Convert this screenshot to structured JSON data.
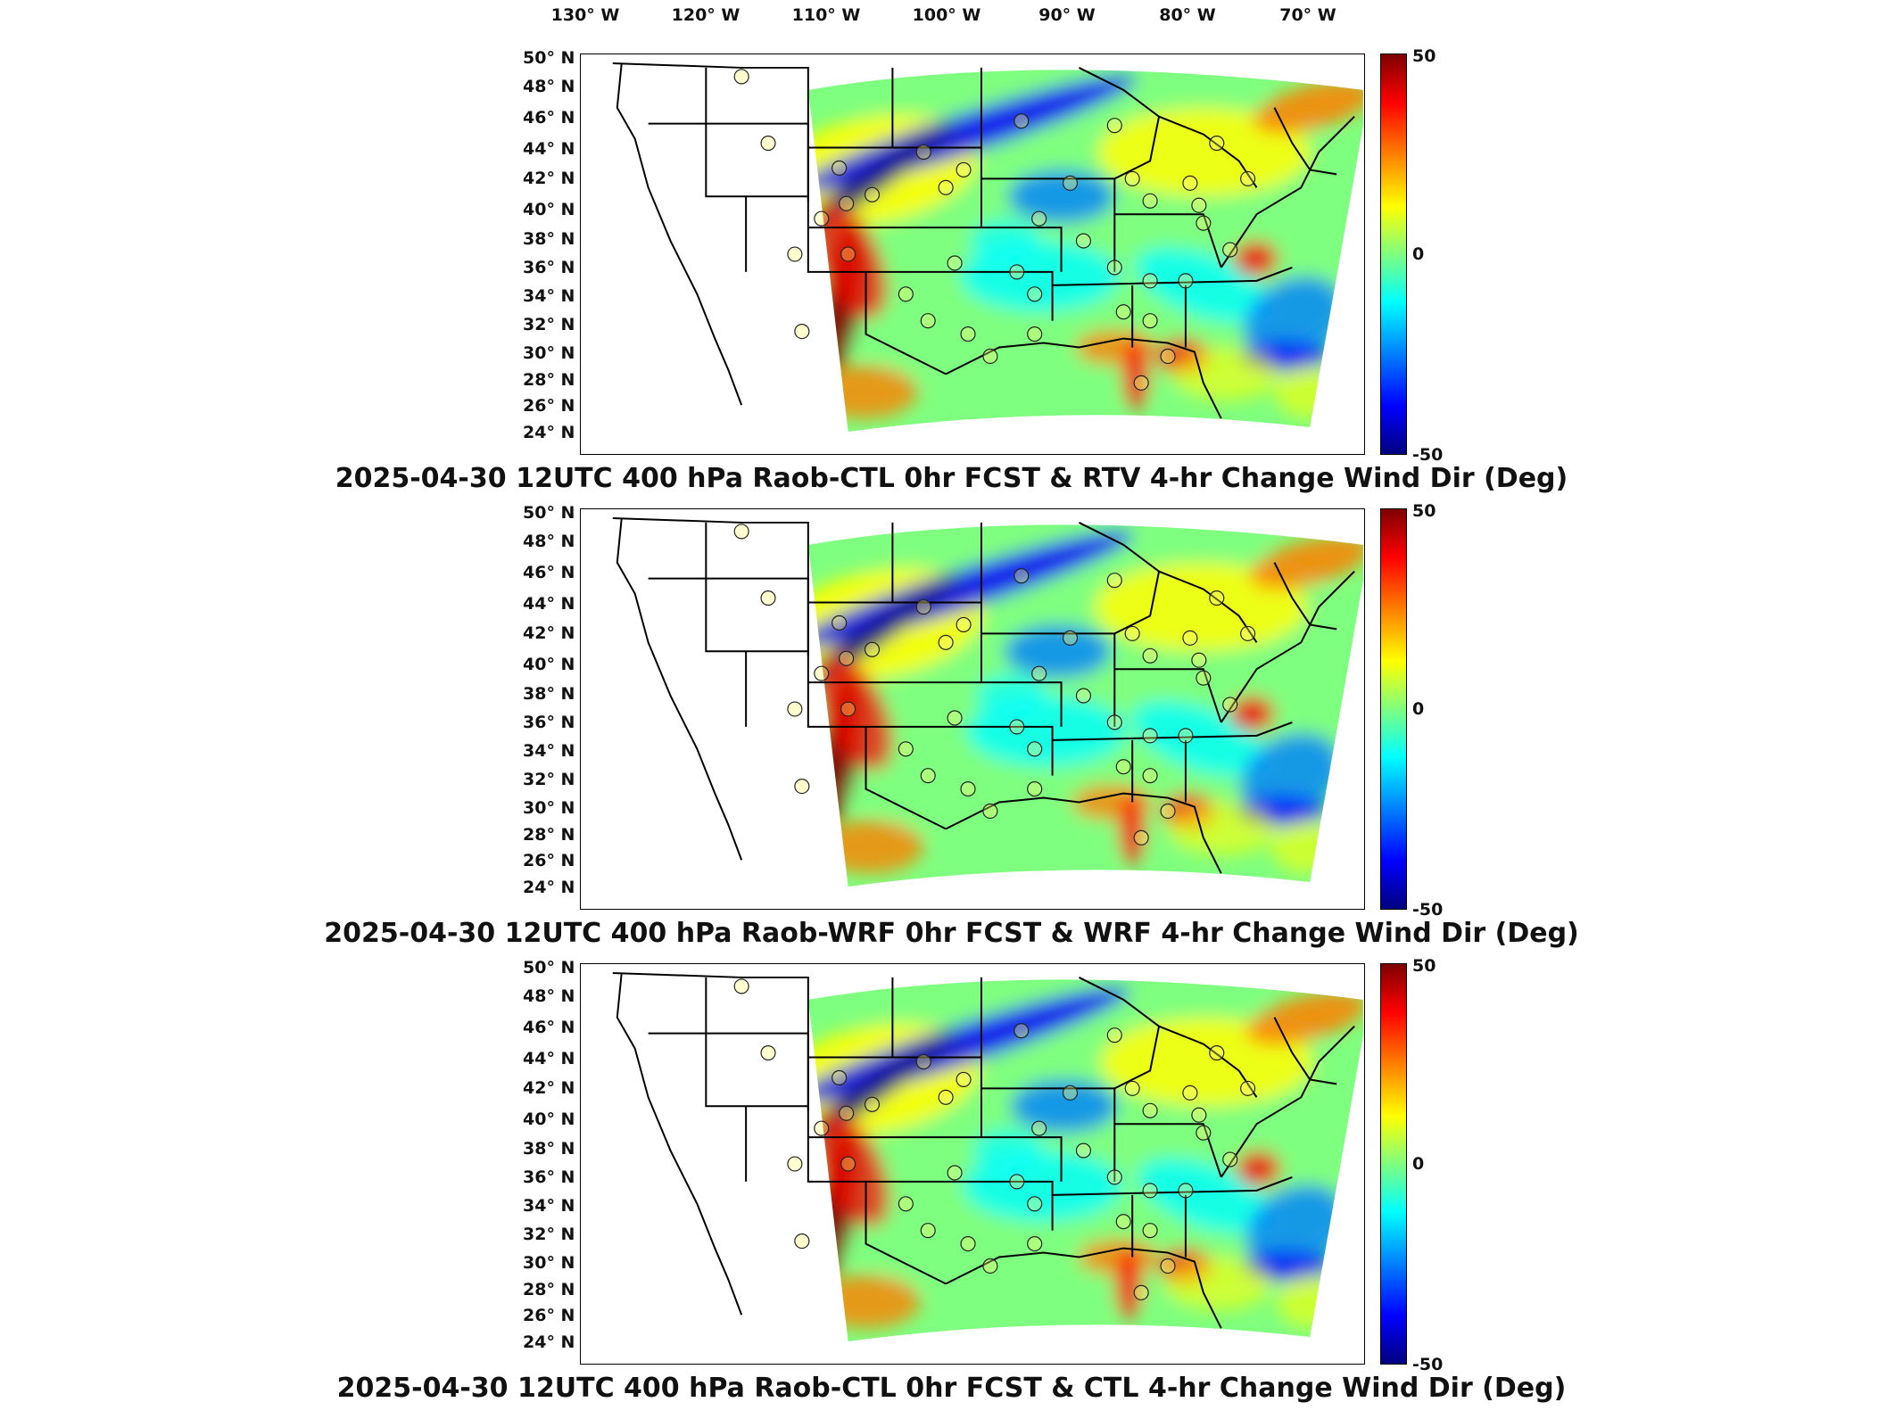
{
  "longitude_labels": [
    "130° W",
    "120° W",
    "110° W",
    "100° W",
    "90° W",
    "80° W",
    "70° W"
  ],
  "latitude_labels": [
    "50° N",
    "48° N",
    "46° N",
    "44° N",
    "42° N",
    "40° N",
    "38° N",
    "36° N",
    "34° N",
    "32° N",
    "30° N",
    "28° N",
    "26° N",
    "24° N"
  ],
  "colorbar": {
    "max_label": "50",
    "mid_label": "0",
    "min_label": "-50",
    "min": -50,
    "max": 50,
    "colormap": "jet"
  },
  "panels": [
    {
      "title": "2025-04-30 12UTC 400 hPa Raob-CTL 0hr FCST & RTV 4-hr Change Wind Dir (Deg)"
    },
    {
      "title": "2025-04-30 12UTC 400 hPa Raob-WRF 0hr FCST & WRF 4-hr Change Wind Dir (Deg)"
    },
    {
      "title": "2025-04-30 12UTC 400 hPa Raob-CTL 0hr FCST & CTL 4-hr Change Wind Dir (Deg)"
    }
  ],
  "colors": {
    "dark_red": "#7f0000",
    "red": "#ff0000",
    "orange": "#ff7f00",
    "yellow": "#ffff00",
    "green": "#7fff7f",
    "cyan": "#00ffff",
    "light_blue": "#007fff",
    "blue": "#0000ff",
    "dark_blue": "#00007f"
  }
}
